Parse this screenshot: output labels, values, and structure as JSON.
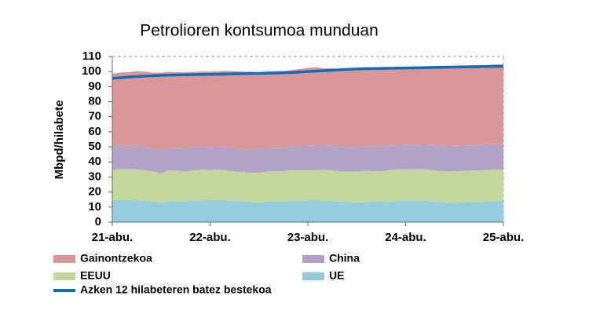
{
  "chart_data": {
    "type": "stacked-area",
    "title": "Petrolioren kontsumoa munduan",
    "y_label": "Mbpd/hilabete",
    "categories": [
      "21-abu.",
      null,
      null,
      null,
      null,
      null,
      null,
      null,
      null,
      null,
      null,
      null,
      "22-abu.",
      null,
      null,
      null,
      null,
      null,
      null,
      null,
      null,
      null,
      null,
      null,
      "23-abu.",
      null,
      null,
      null,
      null,
      null,
      null,
      null,
      null,
      null,
      null,
      null,
      "24-abu.",
      null,
      null,
      null,
      null,
      null,
      null,
      null,
      null,
      null,
      null,
      null,
      "25-abu."
    ],
    "ylim": [
      0,
      110
    ],
    "yticks": [
      0,
      10,
      20,
      30,
      40,
      50,
      60,
      70,
      80,
      90,
      100,
      110
    ],
    "series": [
      {
        "name": "UE",
        "color": "#93cddd",
        "values": [
          14.5,
          14.8,
          14.6,
          14.5,
          14.2,
          13.8,
          12.8,
          13.9,
          14.0,
          13.8,
          14.2,
          14.5,
          14.6,
          14.7,
          14.5,
          14.1,
          13.8,
          13.5,
          12.9,
          13.6,
          13.9,
          13.7,
          14.1,
          14.4,
          14.5,
          14.6,
          14.3,
          14.0,
          13.8,
          13.4,
          12.9,
          13.4,
          13.6,
          13.5,
          13.9,
          14.2,
          14.4,
          14.5,
          14.2,
          14.0,
          13.6,
          13.2,
          12.8,
          13.3,
          13.5,
          13.4,
          13.8,
          14.1,
          14.3
        ]
      },
      {
        "name": "EEUU",
        "color": "#c3d69b",
        "values": [
          20.2,
          20.4,
          20.6,
          20.5,
          20.3,
          19.8,
          19.6,
          20.5,
          20.1,
          19.8,
          20.3,
          20.4,
          20.1,
          20.2,
          20.0,
          19.6,
          19.5,
          19.4,
          19.8,
          20.1,
          19.9,
          20.2,
          20.6,
          20.3,
          20.2,
          20.1,
          20.5,
          20.4,
          19.9,
          20.0,
          20.5,
          20.6,
          20.3,
          20.4,
          20.7,
          20.9,
          20.6,
          20.5,
          21.0,
          20.8,
          20.4,
          20.5,
          20.9,
          20.7,
          20.8,
          21.0,
          20.9,
          20.8,
          20.7
        ]
      },
      {
        "name": "China",
        "color": "#b3a2c7",
        "values": [
          15.6,
          15.7,
          15.8,
          16.0,
          15.4,
          15.2,
          15.5,
          15.4,
          15.3,
          15.6,
          15.5,
          15.3,
          15.2,
          15.3,
          15.6,
          15.5,
          15.4,
          15.7,
          15.9,
          15.8,
          15.6,
          15.5,
          15.6,
          16.0,
          16.2,
          16.4,
          16.3,
          16.5,
          16.6,
          16.2,
          16.4,
          16.5,
          16.6,
          16.5,
          16.4,
          16.6,
          16.5,
          16.4,
          16.5,
          16.7,
          16.8,
          16.9,
          17.0,
          16.8,
          16.7,
          16.9,
          17.0,
          16.9,
          17.0
        ]
      },
      {
        "name": "Gainontzekoa",
        "color": "#d99694",
        "values": [
          48.2,
          48.5,
          48.6,
          49.3,
          50.0,
          50.5,
          51.4,
          50.0,
          50.2,
          50.5,
          49.8,
          49.9,
          50.2,
          50.0,
          50.3,
          51.0,
          51.2,
          51.3,
          50.9,
          50.5,
          51.0,
          51.0,
          50.7,
          51.0,
          51.6,
          51.8,
          51.0,
          51.3,
          51.3,
          51.5,
          51.5,
          51.2,
          51.3,
          51.4,
          51.2,
          50.9,
          51.1,
          51.4,
          51.4,
          51.6,
          52.3,
          52.5,
          52.5,
          53.0,
          53.0,
          52.6,
          52.6,
          53.0,
          52.7
        ]
      },
      {
        "name": "Azken 12 hilabeteren batez bestekoa",
        "type": "line",
        "color": "#0f6cbd",
        "values": [
          95.5,
          95.9,
          96.3,
          96.7,
          97.0,
          97.3,
          97.5,
          97.7,
          97.8,
          97.9,
          98.0,
          98.1,
          98.2,
          98.3,
          98.4,
          98.5,
          98.6,
          98.7,
          98.8,
          98.9,
          99.0,
          99.2,
          99.4,
          99.7,
          100.0,
          100.3,
          100.6,
          100.9,
          101.2,
          101.5,
          101.7,
          101.9,
          102.0,
          102.1,
          102.2,
          102.3,
          102.4,
          102.5,
          102.6,
          102.7,
          102.8,
          102.9,
          103.0,
          103.1,
          103.2,
          103.3,
          103.4,
          103.4,
          103.5
        ]
      }
    ]
  }
}
